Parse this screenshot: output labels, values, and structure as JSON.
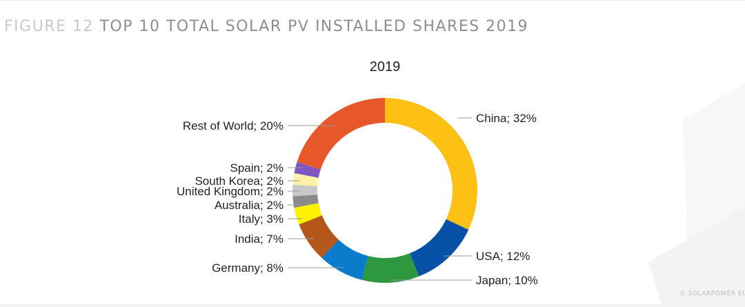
{
  "figure": {
    "number": "FIGURE 12",
    "title": "TOP 10 TOTAL SOLAR PV INSTALLED SHARES 2019"
  },
  "credit": "© SOLARPOWER EURO",
  "colors": {
    "china": "#FDC116",
    "usa": "#0751A6",
    "japan": "#2E983E",
    "germany": "#0B7BCB",
    "india": "#B5561A",
    "italy": "#FFF200",
    "australia": "#8A8A8A",
    "united_kingdom": "#C8C8C8",
    "south_korea": "#FFF1A6",
    "spain": "#7E57C2",
    "rest_of_world": "#E8572A"
  },
  "chart_data": {
    "type": "pie",
    "style": "donut",
    "title": "2019",
    "slices": [
      {
        "key": "china",
        "label": "China; 32%",
        "value": 32
      },
      {
        "key": "usa",
        "label": "USA; 12%",
        "value": 12
      },
      {
        "key": "japan",
        "label": "Japan; 10%",
        "value": 10
      },
      {
        "key": "germany",
        "label": "Germany; 8%",
        "value": 8
      },
      {
        "key": "india",
        "label": "India; 7%",
        "value": 7
      },
      {
        "key": "italy",
        "label": "Italy; 3%",
        "value": 3
      },
      {
        "key": "australia",
        "label": "Australia; 2%",
        "value": 2
      },
      {
        "key": "united_kingdom",
        "label": "United Kingdom; 2%",
        "value": 2
      },
      {
        "key": "south_korea",
        "label": "South Korea; 2%",
        "value": 2
      },
      {
        "key": "spain",
        "label": "Spain; 2%",
        "value": 2
      },
      {
        "key": "rest_of_world",
        "label": "Rest of World; 20%",
        "value": 20
      }
    ]
  }
}
